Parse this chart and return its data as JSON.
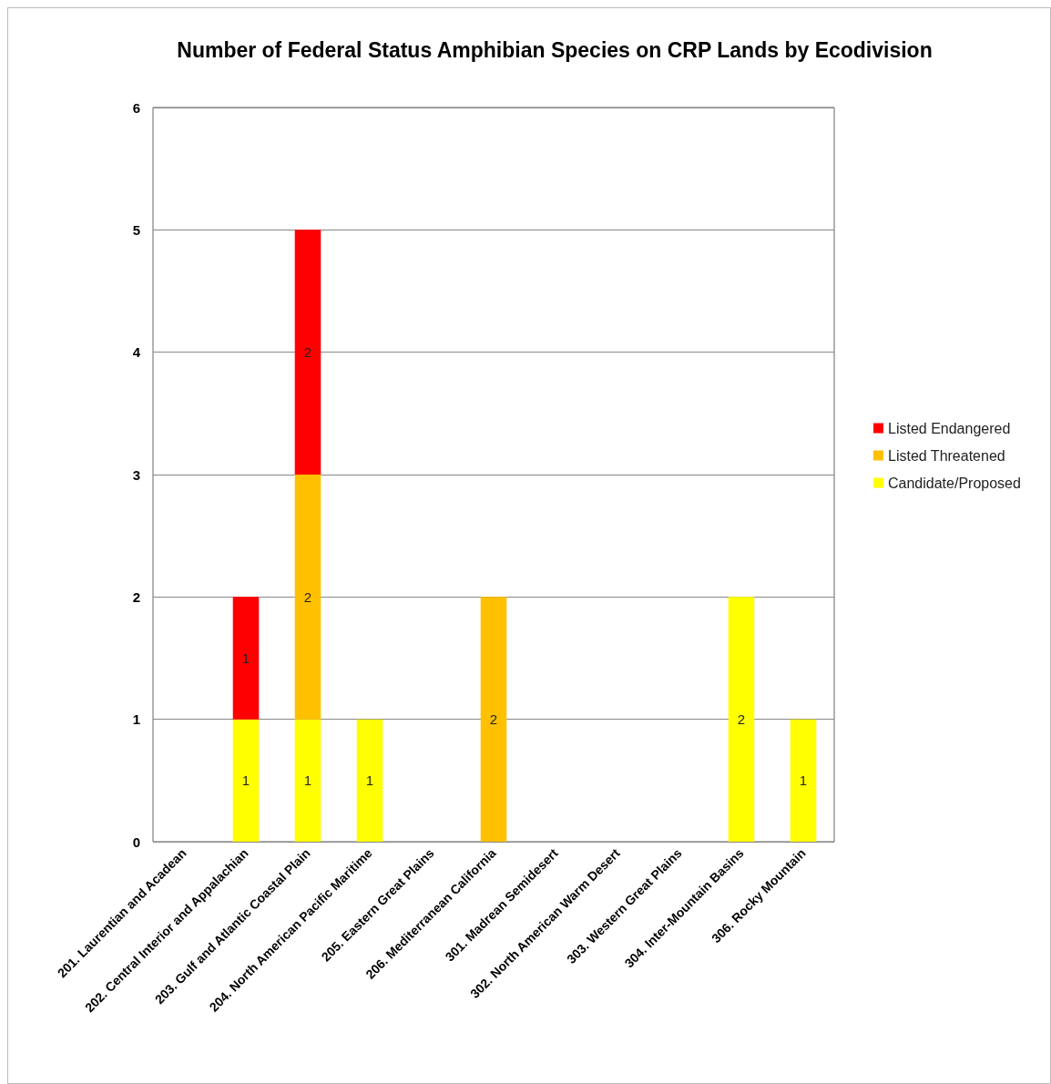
{
  "chart_data": {
    "type": "bar",
    "stacked": true,
    "title": "Number of Federal Status Amphibian Species on CRP Lands by Ecodivision",
    "categories": [
      "201. Laurentian and Acadean",
      "202. Central Interior and Appalachian",
      "203. Gulf and Atlantic Coastal Plain",
      "204. North American Pacific Maritime",
      "205. Eastern Great Plains",
      "206. Mediterranean California",
      "301. Madrean Semidesert",
      "302. North American Warm Desert",
      "303. Western Great Plains",
      "304. Inter-Mountain Basins",
      "306. Rocky Mountain"
    ],
    "series": [
      {
        "name": "Candidate/Proposed",
        "color": "#ffff00",
        "values": [
          0,
          1,
          1,
          1,
          0,
          0,
          0,
          0,
          0,
          2,
          1
        ],
        "value_labels": [
          null,
          "1",
          "1",
          "1",
          null,
          null,
          null,
          null,
          null,
          "2",
          "1"
        ]
      },
      {
        "name": "Listed Threatened",
        "color": "#ffc000",
        "values": [
          0,
          0,
          2,
          0,
          0,
          2,
          0,
          0,
          0,
          0,
          0
        ],
        "value_labels": [
          null,
          null,
          "2",
          null,
          null,
          "2",
          null,
          null,
          null,
          null,
          null
        ]
      },
      {
        "name": "Listed Endangered",
        "color": "#ff0000",
        "values": [
          0,
          1,
          2,
          0,
          0,
          0,
          0,
          0,
          0,
          0,
          0
        ],
        "value_labels": [
          null,
          "1",
          "2",
          null,
          null,
          null,
          null,
          null,
          null,
          null,
          null
        ]
      }
    ],
    "ylim": [
      0,
      6
    ],
    "yticks": [
      0,
      1,
      2,
      3,
      4,
      5,
      6
    ],
    "grid": "y",
    "legend": "right"
  }
}
